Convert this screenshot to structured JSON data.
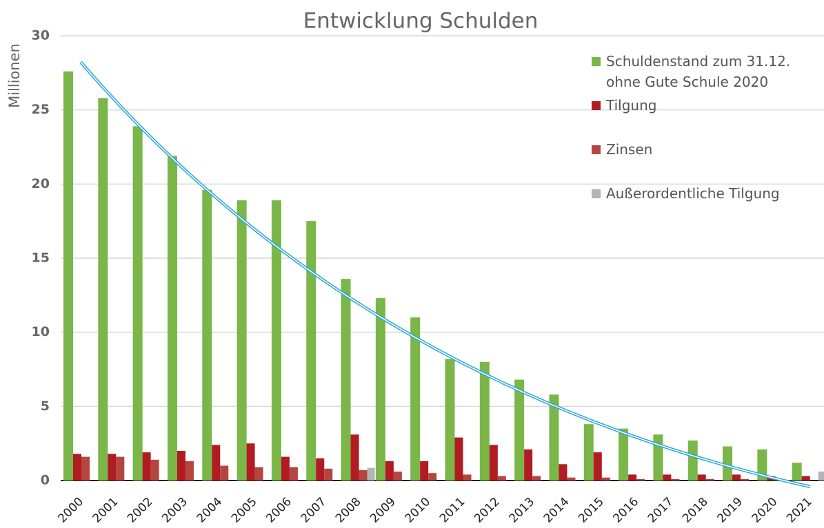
{
  "chart_data": {
    "type": "bar",
    "title": "Entwicklung Schulden",
    "y_label": "Millionen",
    "categories": [
      "2000",
      "2001",
      "2002",
      "2003",
      "2004",
      "2005",
      "2006",
      "2007",
      "2008",
      "2009",
      "2010",
      "2011",
      "2012",
      "2013",
      "2014",
      "2015",
      "2016",
      "2017",
      "2018",
      "2019",
      "2020",
      "2021"
    ],
    "series": [
      {
        "name": "Schuldenstand zum 31.12. ohne Gute Schule 2020",
        "color": "#7ab648",
        "values": [
          27.6,
          25.8,
          23.9,
          21.9,
          19.6,
          18.9,
          18.9,
          17.5,
          13.6,
          12.3,
          11.0,
          8.2,
          8.0,
          6.8,
          5.8,
          3.8,
          3.5,
          3.1,
          2.7,
          2.3,
          2.1,
          1.2
        ]
      },
      {
        "name": "Tilgung",
        "color": "#b01c22",
        "values": [
          1.8,
          1.8,
          1.9,
          2.0,
          2.4,
          2.5,
          1.6,
          1.5,
          3.1,
          1.3,
          1.3,
          2.9,
          2.4,
          2.1,
          1.1,
          1.9,
          0.4,
          0.4,
          0.4,
          0.4,
          0.3,
          0.3
        ]
      },
      {
        "name": "Zinsen",
        "color": "#b5453e",
        "values": [
          1.6,
          1.6,
          1.4,
          1.3,
          1.0,
          0.9,
          0.9,
          0.8,
          0.7,
          0.6,
          0.5,
          0.4,
          0.3,
          0.3,
          0.2,
          0.2,
          0.1,
          0.1,
          0.1,
          0.1,
          0.1,
          0.0
        ]
      },
      {
        "name": "Außerordentliche Tilgung",
        "color": "#b3b3ba",
        "values": [
          0,
          0,
          0,
          0,
          0,
          0,
          0,
          0,
          0.85,
          0,
          0,
          0,
          0,
          0,
          0,
          0,
          0,
          0,
          0,
          0,
          0,
          0.6
        ]
      }
    ],
    "ylim": [
      0,
      30
    ],
    "yticks": [
      0,
      5,
      10,
      15,
      20,
      25,
      30
    ],
    "grid": true
  }
}
